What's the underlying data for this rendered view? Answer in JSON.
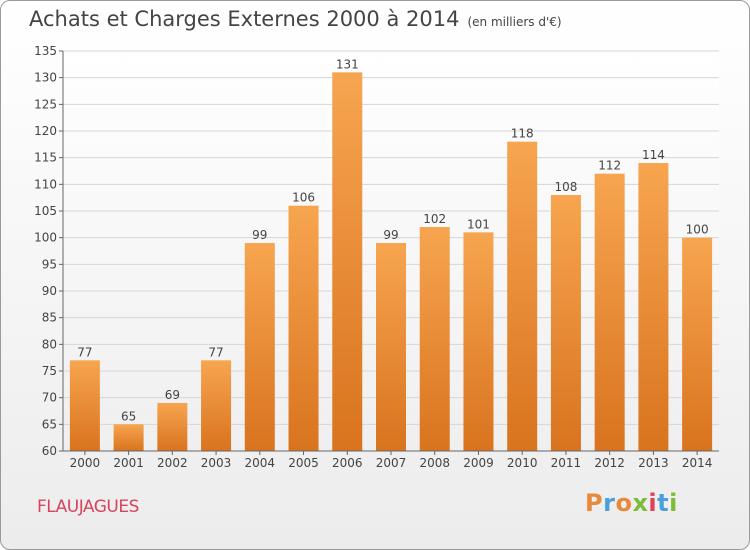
{
  "header": {
    "title": "Achats et Charges Externes 2000 à 2014",
    "unit": "(en milliers d'€)"
  },
  "footer": {
    "commune": "FLAUJAGUES",
    "brand": [
      "P",
      "r",
      "o",
      "x",
      "i",
      "t",
      "i"
    ],
    "brand_colors": [
      "#e9893a",
      "#4a9fdc",
      "#e9893a",
      "#7cbc3a",
      "#e0405a",
      "#4a9fdc",
      "#7cbc3a"
    ]
  },
  "colors": {
    "bar_top": "#f7a550",
    "bar_bottom": "#d9731e",
    "grid": "#d6d6d6",
    "text": "#444444"
  },
  "chart_data": {
    "type": "bar",
    "title": "Achats et Charges Externes 2000 à 2014",
    "categories": [
      "2000",
      "2001",
      "2002",
      "2003",
      "2004",
      "2005",
      "2006",
      "2007",
      "2008",
      "2009",
      "2010",
      "2011",
      "2012",
      "2013",
      "2014"
    ],
    "values": [
      77,
      65,
      69,
      77,
      99,
      106,
      131,
      99,
      102,
      101,
      118,
      108,
      112,
      114,
      100
    ],
    "ylim": [
      60,
      135
    ],
    "yticks": [
      60,
      65,
      70,
      75,
      80,
      85,
      90,
      95,
      100,
      105,
      110,
      115,
      120,
      125,
      130,
      135
    ],
    "grid": true,
    "xlabel": "",
    "ylabel": ""
  }
}
